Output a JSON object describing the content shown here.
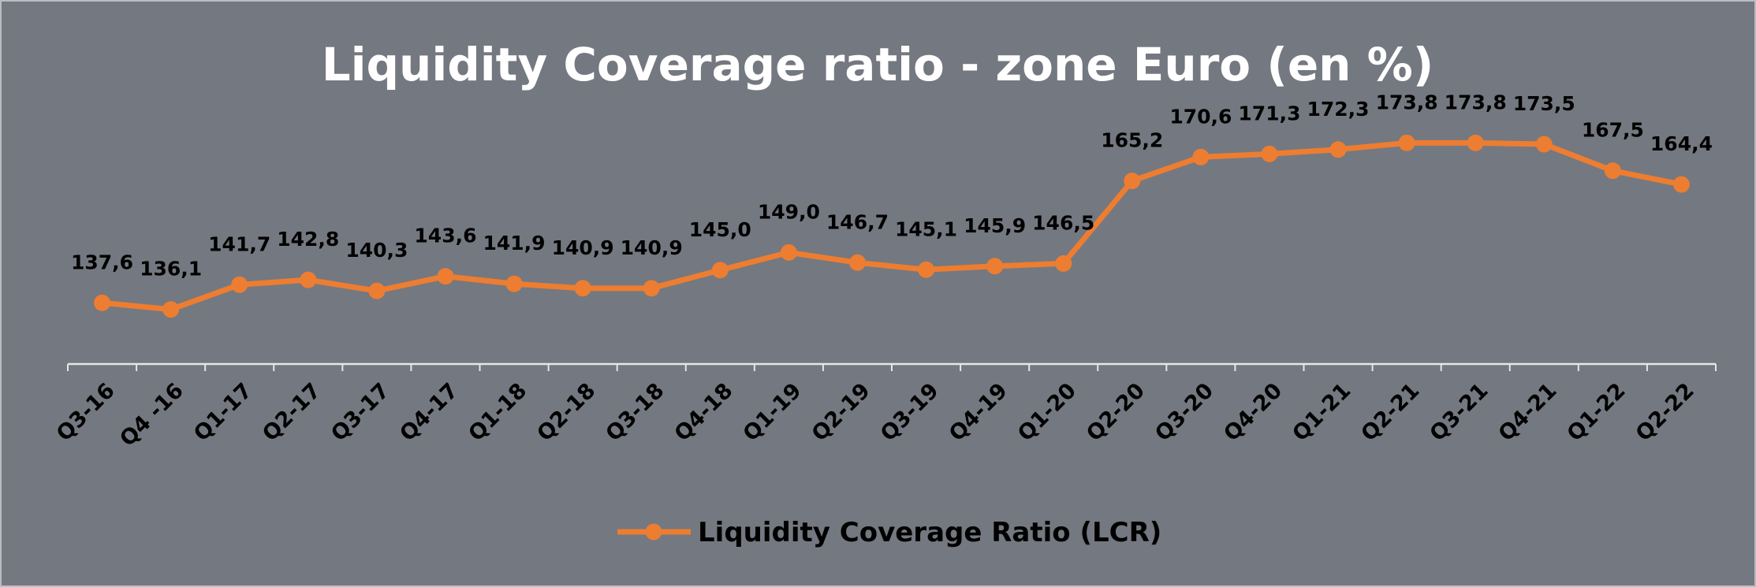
{
  "chart_data": {
    "type": "line",
    "title": "Liquidity Coverage ratio - zone Euro (en %)",
    "xlabel": "",
    "ylabel": "",
    "ylim": [
      120,
      180
    ],
    "grid": false,
    "legend_position": "bottom",
    "categories": [
      "Q3-16",
      "Q4 -16",
      "Q1-17",
      "Q2-17",
      "Q3-17",
      "Q4-17",
      "Q1-18",
      "Q2-18",
      "Q3-18",
      "Q4-18",
      "Q1-19",
      "Q2-19",
      "Q3-19",
      "Q4-19",
      "Q1-20",
      "Q2-20",
      "Q3-20",
      "Q4-20",
      "Q1-21",
      "Q2-21",
      "Q3-21",
      "Q4-21",
      "Q1-22",
      "Q2-22"
    ],
    "series": [
      {
        "name": "Liquidity Coverage Ratio (LCR)",
        "color": "#ED7D31",
        "values": [
          137.6,
          136.1,
          141.7,
          142.8,
          140.3,
          143.6,
          141.9,
          140.9,
          140.9,
          145.0,
          149.0,
          146.7,
          145.1,
          145.9,
          146.5,
          165.2,
          170.6,
          171.3,
          172.3,
          173.8,
          173.8,
          173.5,
          167.5,
          164.4
        ],
        "labels": [
          "137,6",
          "136,1",
          "141,7",
          "142,8",
          "140,3",
          "143,6",
          "141,9",
          "140,9",
          "140,9",
          "145,0",
          "149,0",
          "146,7",
          "145,1",
          "145,9",
          "146,5",
          "165,2",
          "170,6",
          "171,3",
          "172,3",
          "173,8",
          "173,8",
          "173,5",
          "167,5",
          "164,4"
        ]
      }
    ]
  }
}
